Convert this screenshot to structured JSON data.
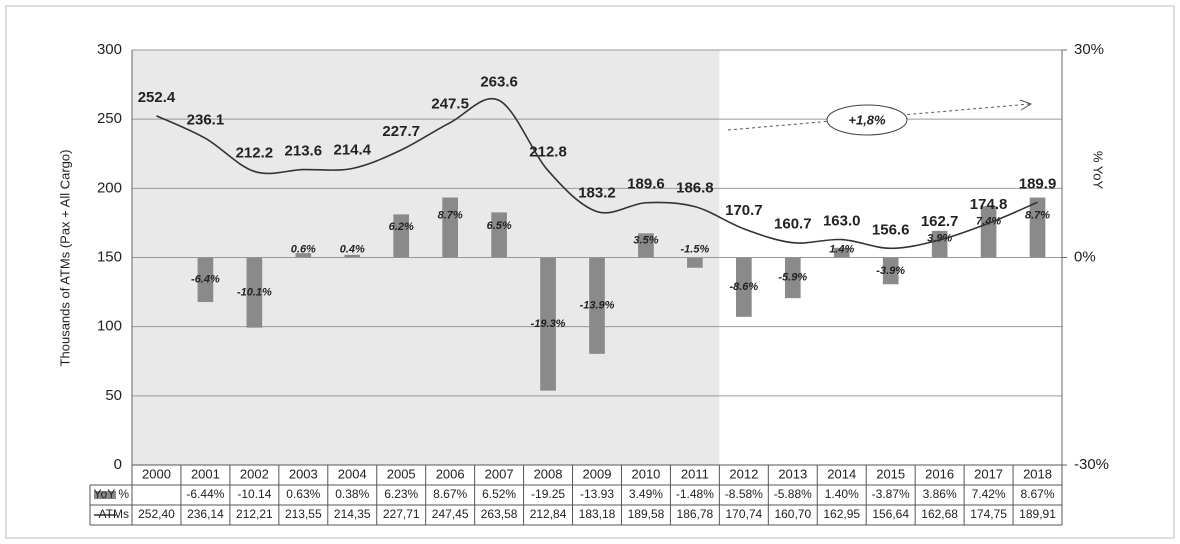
{
  "chart_data": {
    "type": "combo",
    "categories": [
      "2000",
      "2001",
      "2002",
      "2003",
      "2004",
      "2005",
      "2006",
      "2007",
      "2008",
      "2009",
      "2010",
      "2011",
      "2012",
      "2013",
      "2014",
      "2015",
      "2016",
      "2017",
      "2018"
    ],
    "ylabel": "Thousands of ATMs (Pax + All Cargo)",
    "y2label": "% YoY",
    "ylim": [
      0,
      300
    ],
    "yticks": [
      0,
      50,
      100,
      150,
      200,
      250,
      300
    ],
    "y2lim": [
      -30,
      30
    ],
    "y2ticks": [
      {
        "value": -30,
        "label": "-30%"
      },
      {
        "value": 0,
        "label": "0%"
      },
      {
        "value": 30,
        "label": "30%"
      }
    ],
    "grid": true,
    "annotation": "+1,8%",
    "series": [
      {
        "name": "YoY %",
        "type": "bar",
        "axis": "y2",
        "color": "#8a8a8a",
        "values": [
          null,
          -6.44,
          -10.14,
          0.63,
          0.38,
          6.23,
          8.67,
          6.52,
          -19.25,
          -13.93,
          3.49,
          -1.48,
          -8.58,
          -5.88,
          1.4,
          -3.87,
          3.86,
          7.42,
          8.67
        ],
        "value_labels": [
          null,
          "-6.4%",
          "-10.1%",
          "0.6%",
          "0.4%",
          "6.2%",
          "8.7%",
          "6.5%",
          "-19.3%",
          "-13.9%",
          "3.5%",
          "-1.5%",
          "-8.6%",
          "-5.9%",
          "1.4%",
          "-3.9%",
          "3.9%",
          "7.4%",
          "8.7%"
        ],
        "table_values": [
          null,
          "-6.44%",
          "-10.14",
          "0.63%",
          "0.38%",
          "6.23%",
          "8.67%",
          "6.52%",
          "-19.25",
          "-13.93",
          "3.49%",
          "-1.48%",
          "-8.58%",
          "-5.88%",
          "1.40%",
          "-3.87%",
          "3.86%",
          "7.42%",
          "8.67%"
        ]
      },
      {
        "name": "ATMs",
        "type": "line",
        "color": "#333333",
        "values": [
          252.4,
          236.14,
          212.21,
          213.55,
          214.35,
          227.71,
          247.45,
          263.58,
          212.84,
          183.18,
          189.58,
          186.78,
          170.74,
          160.7,
          162.95,
          156.64,
          162.68,
          174.75,
          189.91
        ],
        "value_labels": [
          "252.4",
          "236.1",
          "212.2",
          "213.6",
          "214.4",
          "227.7",
          "247.5",
          "263.6",
          "212.8",
          "183.2",
          "189.6",
          "186.8",
          "170.7",
          "160.7",
          "163.0",
          "156.6",
          "162.7",
          "174.8",
          "189.9"
        ],
        "table_values": [
          "252,40",
          "236,14",
          "212,21",
          "213,55",
          "214,35",
          "227,71",
          "247,45",
          "263,58",
          "212,84",
          "183,18",
          "189,58",
          "186,78",
          "170,74",
          "160,70",
          "162,95",
          "156,64",
          "162,68",
          "174,75",
          "189,91"
        ]
      }
    ]
  }
}
